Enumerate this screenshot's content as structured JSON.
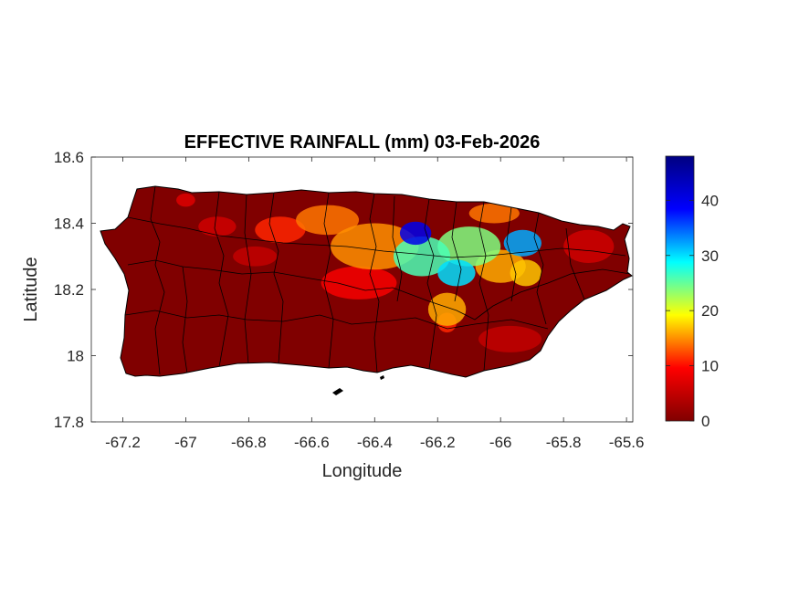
{
  "chart_data": {
    "type": "heatmap",
    "title": "EFFECTIVE RAINFALL (mm) 03-Feb-2026",
    "xlabel": "Longitude",
    "ylabel": "Latitude",
    "xlim": [
      -67.3,
      -65.58
    ],
    "ylim": [
      17.8,
      18.6
    ],
    "xticks": [
      {
        "value": -67.2,
        "label": "-67.2"
      },
      {
        "value": -67,
        "label": "-67"
      },
      {
        "value": -66.8,
        "label": "-66.8"
      },
      {
        "value": -66.6,
        "label": "-66.6"
      },
      {
        "value": -66.4,
        "label": "-66.4"
      },
      {
        "value": -66.2,
        "label": "-66.2"
      },
      {
        "value": -66,
        "label": "-66"
      },
      {
        "value": -65.8,
        "label": "-65.8"
      },
      {
        "value": -65.6,
        "label": "-65.6"
      }
    ],
    "yticks": [
      {
        "value": 18.6,
        "label": "18.6"
      },
      {
        "value": 18.4,
        "label": "18.4"
      },
      {
        "value": 18.2,
        "label": "18.2"
      },
      {
        "value": 18,
        "label": "18"
      },
      {
        "value": 17.8,
        "label": "17.8"
      }
    ],
    "grid": false,
    "colorbar": {
      "colormap": "jet",
      "min": 0,
      "max": 48,
      "ticks": [
        {
          "value": 0,
          "label": "0"
        },
        {
          "value": 10,
          "label": "10"
        },
        {
          "value": 20,
          "label": "20"
        },
        {
          "value": 30,
          "label": "30"
        },
        {
          "value": 40,
          "label": "40"
        }
      ],
      "stops": [
        "#800000",
        "#ff0000",
        "#ffff00",
        "#00ffff",
        "#0000ff",
        "#000080"
      ]
    },
    "background_value": 0,
    "rain_zones": [
      {
        "lon": -66.55,
        "lat": 18.41,
        "r_lon": 0.1,
        "r_lat": 0.045,
        "mm": 14
      },
      {
        "lon": -66.7,
        "lat": 18.38,
        "r_lon": 0.08,
        "r_lat": 0.04,
        "mm": 11
      },
      {
        "lon": -66.9,
        "lat": 18.39,
        "r_lon": 0.06,
        "r_lat": 0.03,
        "mm": 6
      },
      {
        "lon": -66.78,
        "lat": 18.3,
        "r_lon": 0.07,
        "r_lat": 0.03,
        "mm": 5
      },
      {
        "lon": -66.4,
        "lat": 18.33,
        "r_lon": 0.14,
        "r_lat": 0.07,
        "mm": 15
      },
      {
        "lon": -66.45,
        "lat": 18.22,
        "r_lon": 0.12,
        "r_lat": 0.05,
        "mm": 9
      },
      {
        "lon": -66.25,
        "lat": 18.3,
        "r_lon": 0.09,
        "r_lat": 0.06,
        "mm": 26
      },
      {
        "lon": -66.27,
        "lat": 18.37,
        "r_lon": 0.05,
        "r_lat": 0.035,
        "mm": 40
      },
      {
        "lon": -66.14,
        "lat": 18.25,
        "r_lon": 0.06,
        "r_lat": 0.04,
        "mm": 30
      },
      {
        "lon": -66.1,
        "lat": 18.33,
        "r_lon": 0.1,
        "r_lat": 0.06,
        "mm": 24
      },
      {
        "lon": -65.93,
        "lat": 18.34,
        "r_lon": 0.06,
        "r_lat": 0.04,
        "mm": 32
      },
      {
        "lon": -65.92,
        "lat": 18.25,
        "r_lon": 0.05,
        "r_lat": 0.04,
        "mm": 17
      },
      {
        "lon": -66.0,
        "lat": 18.27,
        "r_lon": 0.08,
        "r_lat": 0.05,
        "mm": 16
      },
      {
        "lon": -66.17,
        "lat": 18.14,
        "r_lon": 0.06,
        "r_lat": 0.05,
        "mm": 16
      },
      {
        "lon": -66.17,
        "lat": 18.1,
        "r_lon": 0.03,
        "r_lat": 0.03,
        "mm": 11
      },
      {
        "lon": -65.97,
        "lat": 18.05,
        "r_lon": 0.1,
        "r_lat": 0.04,
        "mm": 5
      },
      {
        "lon": -65.72,
        "lat": 18.33,
        "r_lon": 0.08,
        "r_lat": 0.05,
        "mm": 6
      },
      {
        "lon": -67.0,
        "lat": 18.47,
        "r_lon": 0.03,
        "r_lat": 0.02,
        "mm": 7
      },
      {
        "lon": -66.02,
        "lat": 18.43,
        "r_lon": 0.08,
        "r_lat": 0.03,
        "mm": 14
      }
    ]
  }
}
